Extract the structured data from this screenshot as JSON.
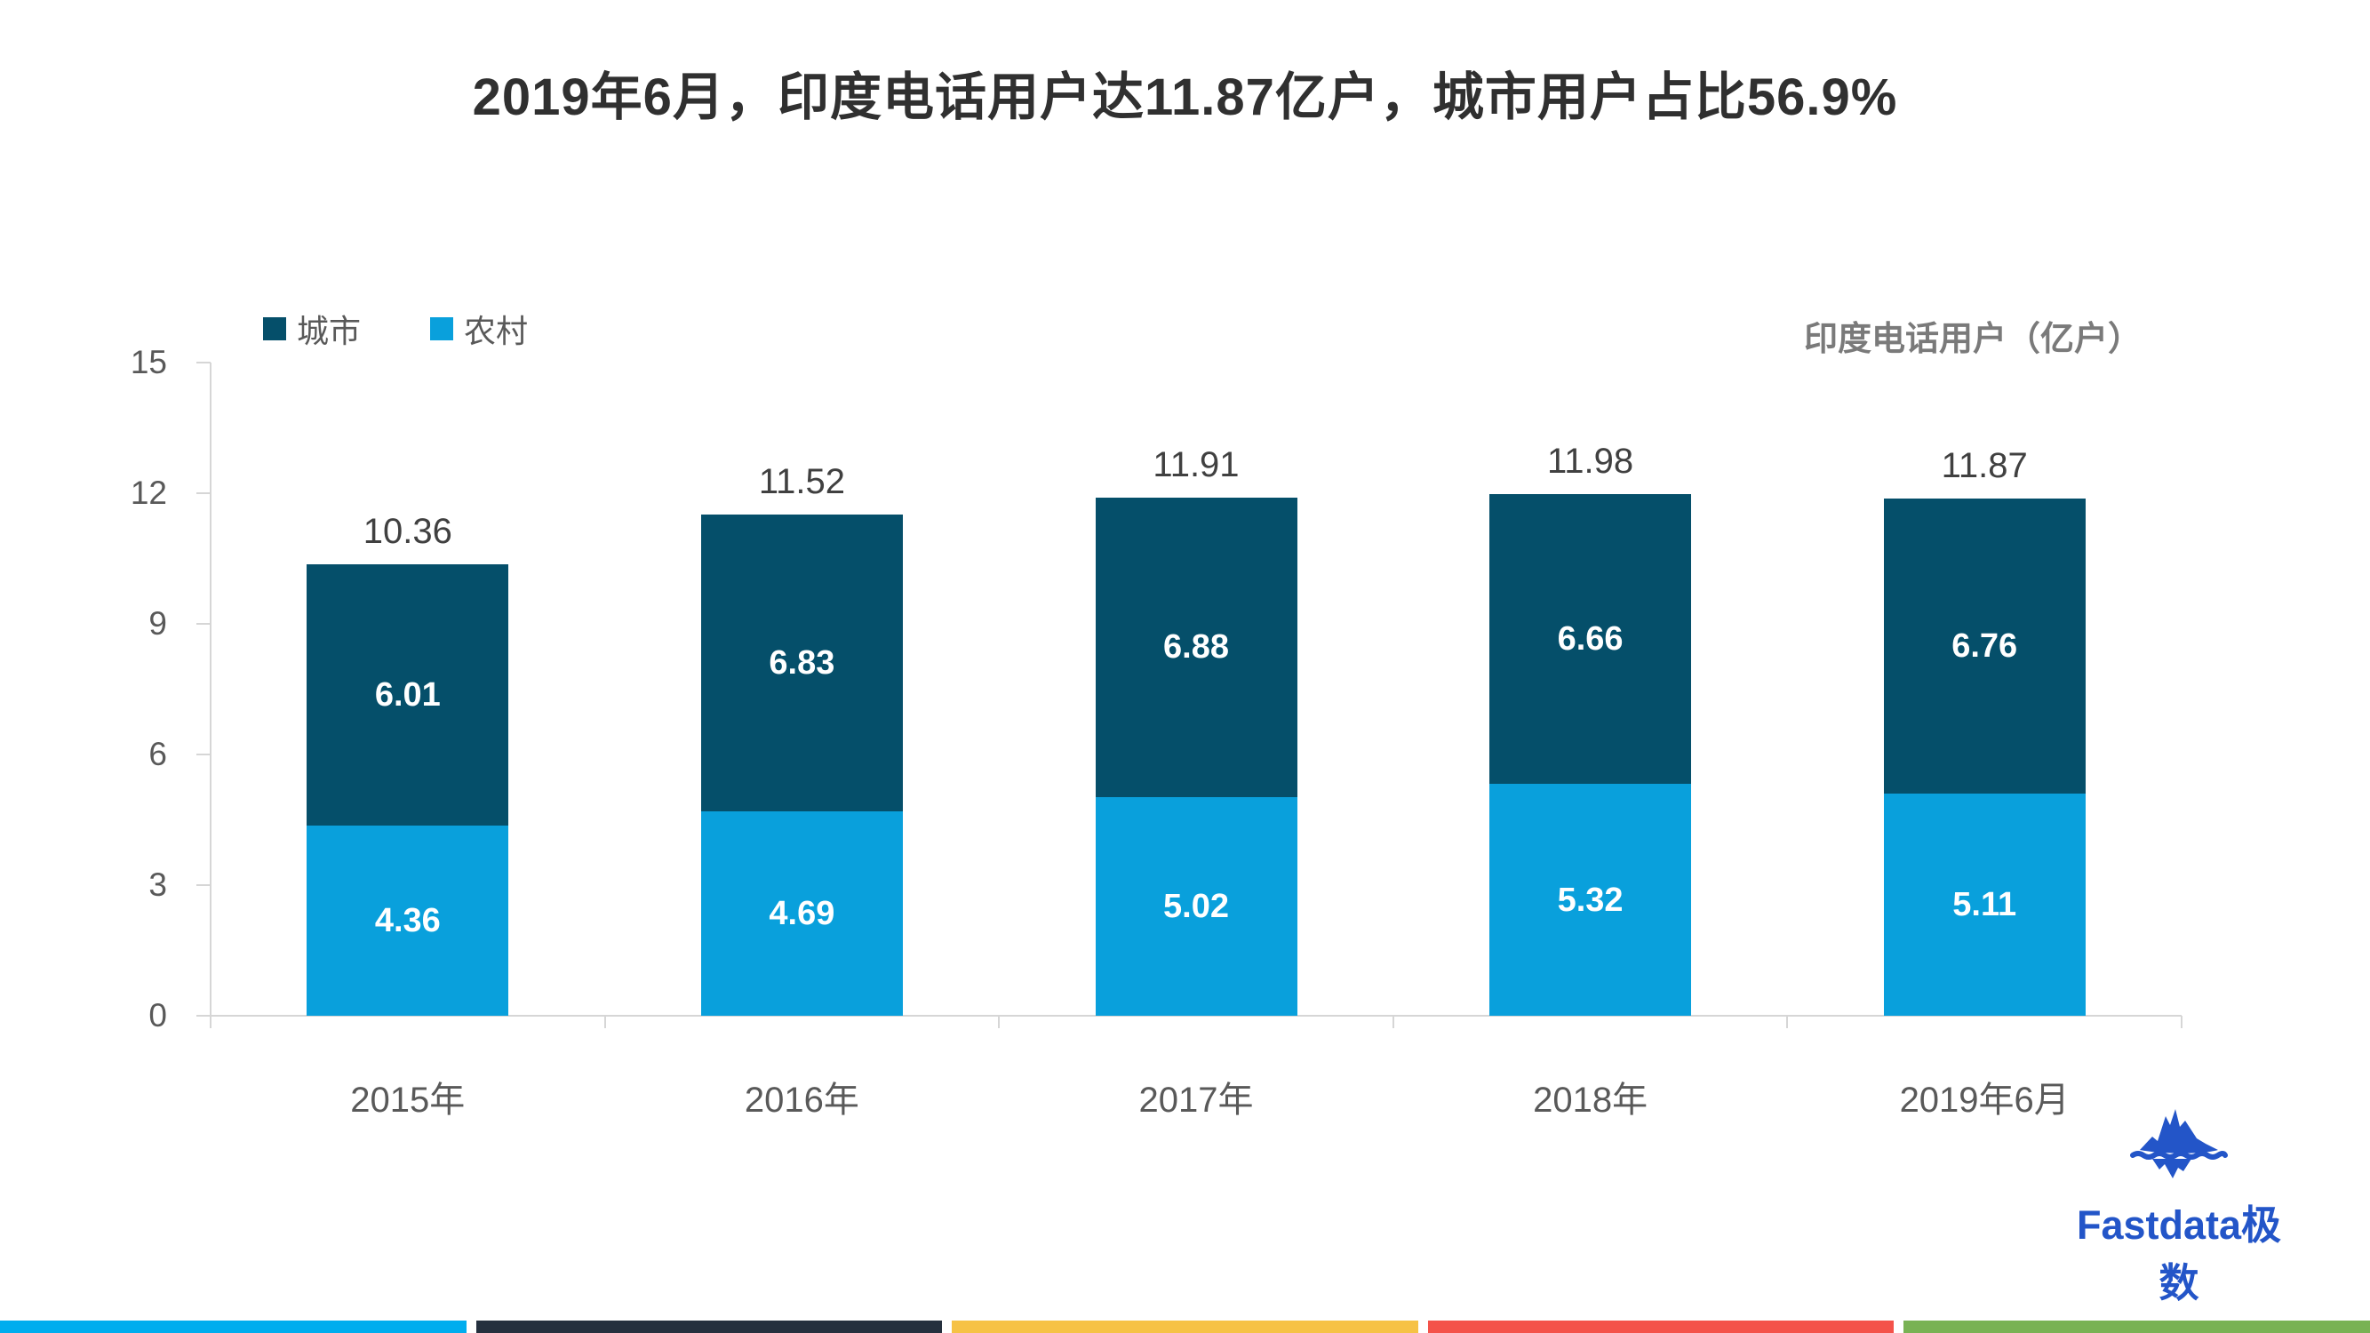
{
  "title": "2019年6月，印度电话用户达11.87亿户，城市用户占比56.9%",
  "axis_title": "印度电话用户（亿户）",
  "chart_data": {
    "type": "bar",
    "stacked": true,
    "categories": [
      "2015年",
      "2016年",
      "2017年",
      "2018年",
      "2019年6月"
    ],
    "series": [
      {
        "name": "城市",
        "color": "#054F6A",
        "values": [
          6.01,
          6.83,
          6.88,
          6.66,
          6.76
        ]
      },
      {
        "name": "农村",
        "color": "#09A0DC",
        "values": [
          4.36,
          4.69,
          5.02,
          5.32,
          5.11
        ]
      }
    ],
    "totals": [
      10.36,
      11.52,
      11.91,
      11.98,
      11.87
    ],
    "y_ticks": [
      15,
      12,
      9,
      6,
      3,
      0
    ],
    "ylim": [
      0,
      15
    ],
    "grid": false,
    "legend_position": "top-left"
  },
  "logo": {
    "text": "Fastdata极数",
    "brand_color": "#2355C8"
  },
  "footer": {
    "stripe_colors": [
      "#00ADEE",
      "#25303E",
      "#F6C245",
      "#F4524A",
      "#79B254"
    ]
  }
}
